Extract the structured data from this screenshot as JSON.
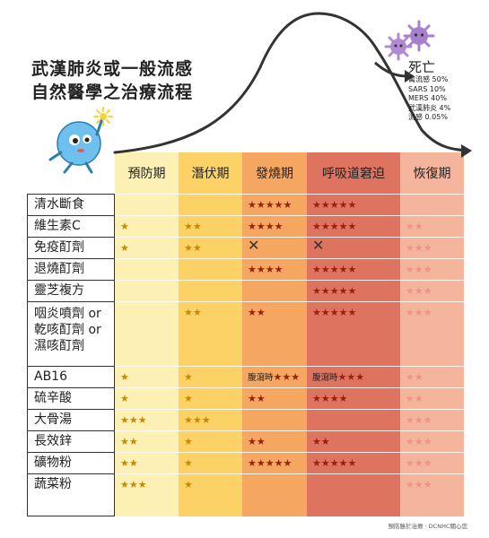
{
  "title": {
    "line1": "武漢肺炎或一般流感",
    "line2": "自然醫學之治療流程"
  },
  "mortality": {
    "heading": "死亡",
    "items": [
      "禽流感 50%",
      "SARS 10%",
      "MERS 40%",
      "武漢肺炎 4%",
      "流感 0.05%"
    ]
  },
  "stages": [
    {
      "label": "預防期",
      "color": "#fdf0b4"
    },
    {
      "label": "潛伏期",
      "color": "#fcd267"
    },
    {
      "label": "發燒期",
      "color": "#f5a660"
    },
    {
      "label": "呼吸道窘迫",
      "color": "#de7460"
    },
    {
      "label": "恢復期",
      "color": "#f5b49c"
    }
  ],
  "colors": {
    "star_dark": "#9a1f10",
    "star_faded": "#ea9585",
    "curve": "#333333",
    "virus": "#b08ad3",
    "mascot": "#6ec1ef",
    "spark": "#f5d33a"
  },
  "rows": [
    {
      "label": "清水斷食",
      "cells": [
        "",
        "",
        "★★★★★",
        "★★★★★",
        ""
      ]
    },
    {
      "label": "維生素C",
      "cells": [
        "★",
        "★★",
        "★★★★",
        "★★★★★",
        "★★"
      ]
    },
    {
      "label": "免疫酊劑",
      "cells": [
        "★",
        "★★",
        "✕",
        "✕",
        "★★★"
      ]
    },
    {
      "label": "退燒酊劑",
      "cells": [
        "",
        "",
        "★★★★",
        "★★★★★",
        "★★★"
      ]
    },
    {
      "label": "靈芝複方",
      "cells": [
        "",
        "",
        "",
        "★★★★★",
        "★★★"
      ]
    },
    {
      "label": "咽炎噴劑 or\n乾咳酊劑 or\n濕咳酊劑",
      "cells": [
        "",
        "★★",
        "★★",
        "★★★★★",
        "★★★"
      ]
    },
    {
      "label": "AB16",
      "cells": [
        "★",
        "★",
        "腹瀉時★★★",
        "腹瀉時★★★",
        "★★"
      ]
    },
    {
      "label": "硫辛酸",
      "cells": [
        "★",
        "★",
        "★★",
        "★★★★",
        "★★"
      ]
    },
    {
      "label": "大骨湯",
      "cells": [
        "★★★",
        "★★★",
        "",
        "",
        "★★★"
      ]
    },
    {
      "label": "長效鋅",
      "cells": [
        "★★",
        "★",
        "★★",
        "★★",
        "★★★"
      ]
    },
    {
      "label": "礦物粉",
      "cells": [
        "★★",
        "★",
        "★★★★★",
        "★★★★★",
        "★★★"
      ]
    },
    {
      "label": "蔬菜粉",
      "cells": [
        "★★★",
        "★",
        "",
        "",
        "★★★"
      ]
    }
  ],
  "credit": "預防勝於治療 · DCNHC關心您"
}
